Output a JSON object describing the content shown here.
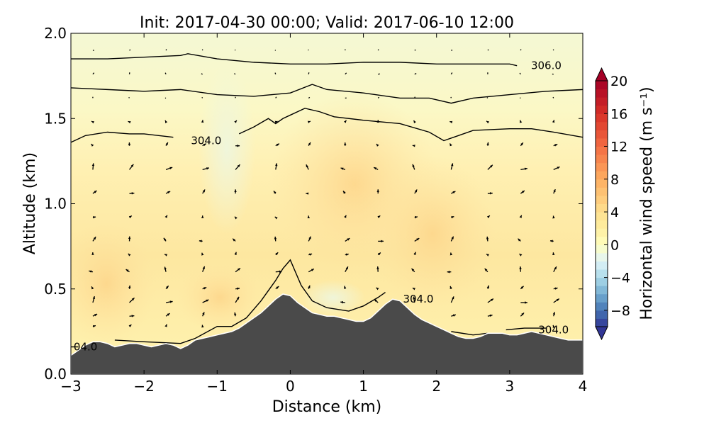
{
  "chart_data": {
    "type": "contour",
    "title": "Init: 2017-04-30 00:00; Valid: 2017-06-10 12:00",
    "xlabel": "Distance (km)",
    "ylabel": "Altitude (km)",
    "xlim": [
      -3,
      4
    ],
    "ylim": [
      0,
      2
    ],
    "x_ticks": [
      -3,
      -2,
      -1,
      0,
      1,
      2,
      3,
      4
    ],
    "x_tick_labels": [
      "−3",
      "−2",
      "−1",
      "0",
      "1",
      "2",
      "3",
      "4"
    ],
    "y_ticks": [
      0.0,
      0.5,
      1.0,
      1.5,
      2.0
    ],
    "y_tick_labels": [
      "0.0",
      "0.5",
      "1.0",
      "1.5",
      "2.0"
    ],
    "colorbar": {
      "label": "Horizontal wind speed (m s⁻¹)",
      "range": [
        -10,
        20
      ],
      "ticks": [
        -8,
        -4,
        0,
        4,
        8,
        12,
        16,
        20
      ],
      "tick_labels": [
        "−8",
        "−4",
        "0",
        "4",
        "8",
        "12",
        "16",
        "20"
      ],
      "colormap": "RdYlBu_r",
      "extend": "both"
    },
    "terrain": {
      "color": "#4a4a4a",
      "x": [
        -3,
        -2.9,
        -2.8,
        -2.7,
        -2.6,
        -2.5,
        -2.4,
        -2.3,
        -2.2,
        -2.1,
        -2.0,
        -1.9,
        -1.8,
        -1.7,
        -1.6,
        -1.5,
        -1.4,
        -1.3,
        -1.2,
        -1.1,
        -1.0,
        -0.9,
        -0.8,
        -0.7,
        -0.6,
        -0.5,
        -0.4,
        -0.3,
        -0.2,
        -0.1,
        0.0,
        0.1,
        0.2,
        0.3,
        0.4,
        0.5,
        0.6,
        0.7,
        0.8,
        0.9,
        1.0,
        1.1,
        1.2,
        1.3,
        1.4,
        1.5,
        1.6,
        1.7,
        1.8,
        1.9,
        2.0,
        2.1,
        2.2,
        2.3,
        2.4,
        2.5,
        2.6,
        2.7,
        2.8,
        2.9,
        3.0,
        3.1,
        3.2,
        3.3,
        3.4,
        3.5,
        3.6,
        3.7,
        3.8,
        3.9,
        4.0
      ],
      "y": [
        0.11,
        0.14,
        0.17,
        0.19,
        0.19,
        0.18,
        0.16,
        0.17,
        0.18,
        0.18,
        0.17,
        0.16,
        0.17,
        0.18,
        0.17,
        0.15,
        0.17,
        0.2,
        0.21,
        0.22,
        0.23,
        0.24,
        0.25,
        0.27,
        0.3,
        0.33,
        0.36,
        0.4,
        0.44,
        0.47,
        0.46,
        0.42,
        0.39,
        0.36,
        0.35,
        0.34,
        0.34,
        0.33,
        0.32,
        0.31,
        0.31,
        0.33,
        0.37,
        0.41,
        0.44,
        0.43,
        0.39,
        0.35,
        0.32,
        0.3,
        0.28,
        0.26,
        0.24,
        0.22,
        0.21,
        0.21,
        0.22,
        0.24,
        0.24,
        0.24,
        0.23,
        0.23,
        0.24,
        0.25,
        0.24,
        0.23,
        0.22,
        0.21,
        0.2,
        0.2,
        0.2
      ]
    },
    "contour_lines": [
      {
        "level": "306.0",
        "x": [
          -3,
          -2.5,
          -2.0,
          -1.5,
          -1.4,
          -1.0,
          -0.5,
          0.0,
          0.5,
          1.0,
          1.5,
          2.0,
          2.5,
          3.0,
          3.1
        ],
        "y": [
          1.85,
          1.85,
          1.86,
          1.87,
          1.88,
          1.85,
          1.83,
          1.82,
          1.82,
          1.83,
          1.83,
          1.82,
          1.82,
          1.82,
          1.81
        ]
      },
      {
        "level": "",
        "x": [
          -3,
          -2.5,
          -2.0,
          -1.5,
          -1.0,
          -0.5,
          0.0,
          0.3,
          0.5,
          1.0,
          1.5,
          1.9,
          2.2,
          2.5,
          3.0,
          3.5,
          4.0
        ],
        "y": [
          1.68,
          1.67,
          1.66,
          1.67,
          1.64,
          1.63,
          1.65,
          1.7,
          1.67,
          1.65,
          1.62,
          1.62,
          1.59,
          1.62,
          1.64,
          1.66,
          1.67
        ]
      },
      {
        "level": "304.0",
        "x": [
          -3,
          -2.8,
          -2.5,
          -2.2,
          -2.0,
          -1.6
        ],
        "y": [
          1.36,
          1.4,
          1.42,
          1.41,
          1.41,
          1.39
        ]
      },
      {
        "level": "",
        "x": [
          -0.7,
          -0.5,
          -0.3,
          -0.2,
          -0.1,
          0.0,
          0.15,
          0.2,
          0.4,
          0.6,
          1.0,
          1.5,
          1.9,
          2.1,
          2.3,
          2.5,
          3.0,
          3.3,
          3.6,
          4.0
        ],
        "y": [
          1.41,
          1.45,
          1.5,
          1.47,
          1.5,
          1.52,
          1.55,
          1.56,
          1.54,
          1.51,
          1.49,
          1.47,
          1.42,
          1.37,
          1.4,
          1.43,
          1.44,
          1.44,
          1.42,
          1.39
        ]
      },
      {
        "level": "304.0",
        "x": [
          -2.4,
          -2.0,
          -1.5,
          -1.3,
          -1.0,
          -0.8,
          -0.6,
          -0.4,
          -0.2,
          -0.1,
          0.0,
          0.15,
          0.3,
          0.5,
          0.8,
          1.0,
          1.2,
          1.3
        ],
        "y": [
          0.2,
          0.19,
          0.18,
          0.21,
          0.28,
          0.28,
          0.33,
          0.43,
          0.55,
          0.62,
          0.67,
          0.52,
          0.43,
          0.39,
          0.37,
          0.4,
          0.45,
          0.48
        ]
      },
      {
        "level": "04.0",
        "x": [
          -3,
          -2.9
        ],
        "y": [
          0.16,
          0.16
        ]
      },
      {
        "level": "304.0",
        "x": [
          2.2,
          2.5,
          2.7
        ],
        "y": [
          0.25,
          0.23,
          0.24
        ]
      },
      {
        "level": "304.0",
        "x": [
          2.95,
          3.2,
          3.5
        ],
        "y": [
          0.26,
          0.27,
          0.27
        ]
      }
    ],
    "wind_vectors": {
      "units": "km",
      "columns_x": [
        -2.7,
        -2.2,
        -1.7,
        -1.2,
        -0.75,
        -0.2,
        0.25,
        0.75,
        1.2,
        1.7,
        2.2,
        2.7,
        3.15,
        3.6
      ],
      "levels_y": [
        1.9,
        1.76,
        1.62,
        1.48,
        1.34,
        1.2,
        1.06,
        0.92,
        0.78,
        0.7,
        0.6,
        0.5,
        0.42,
        0.34,
        0.28
      ]
    }
  }
}
